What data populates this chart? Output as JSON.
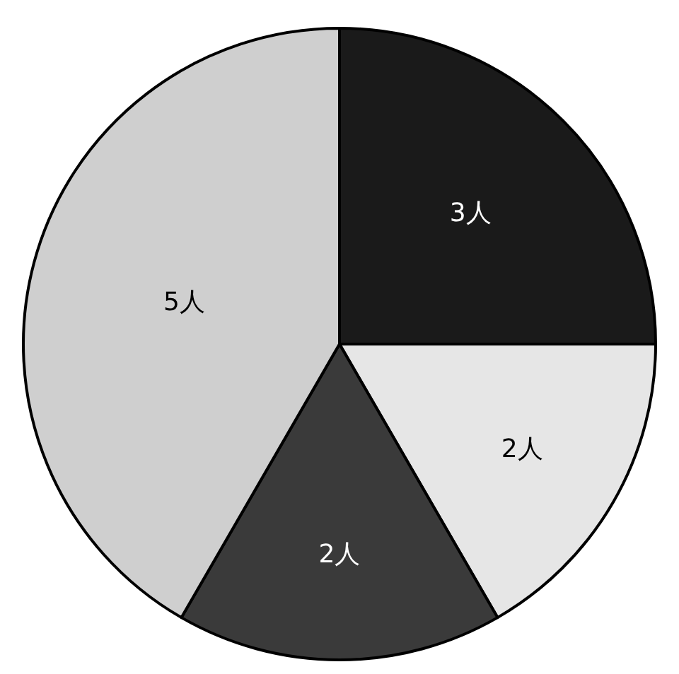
{
  "chart_data": {
    "type": "pie",
    "categories": [
      null,
      null,
      null,
      null
    ],
    "values": [
      3,
      2,
      2,
      5
    ],
    "value_labels": [
      "3人",
      "2人",
      "2人",
      "5人"
    ],
    "colors": [
      "#1a1a1a",
      "#e6e6e6",
      "#3a3a3a",
      "#cfcfcf"
    ],
    "legend": false
  }
}
